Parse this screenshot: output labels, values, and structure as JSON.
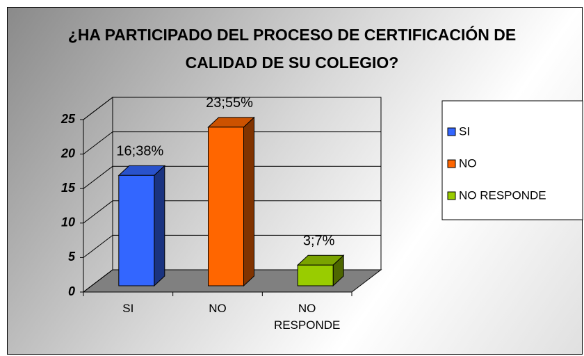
{
  "chart_data": {
    "type": "bar3d",
    "title": "¿HA PARTICIPADO DEL PROCESO DE CERTIFICACIÓN DE CALIDAD DE SU COLEGIO?",
    "categories": [
      "SI",
      "NO",
      "NO RESPONDE"
    ],
    "values": [
      16,
      23,
      3
    ],
    "value_labels": [
      "16;38%",
      "23;55%",
      "3;7%"
    ],
    "colors": [
      "#3366ff",
      "#ff6600",
      "#99cc00"
    ],
    "ylim": [
      0,
      25
    ],
    "yticks": [
      0,
      5,
      10,
      15,
      20,
      25
    ],
    "grid": true
  }
}
